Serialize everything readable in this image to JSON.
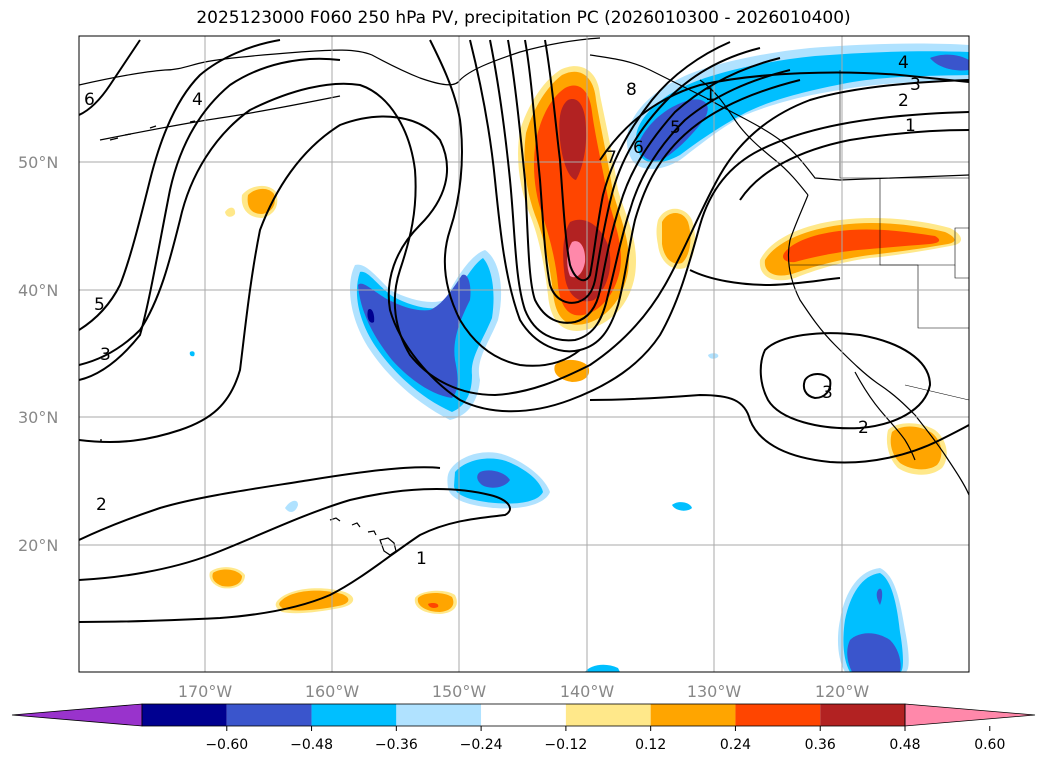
{
  "title": "2025123000 F060 250 hPa PV, precipitation PC (2026010300 - 2026010400)",
  "map": {
    "lat_ticks": [
      "50°N",
      "40°N",
      "30°N",
      "20°N"
    ],
    "lon_ticks": [
      "170°W",
      "160°W",
      "150°W",
      "140°W",
      "130°W",
      "120°W"
    ],
    "grid": true
  },
  "pv_contours": {
    "color": "#000000",
    "labels": [
      "6",
      "4",
      "5",
      "3",
      "2",
      "8",
      "7",
      "6",
      "5",
      "4",
      "3",
      "2",
      "1",
      "1",
      "2",
      "3",
      "1"
    ]
  },
  "colorbar": {
    "ticks": [
      "−0.60",
      "−0.48",
      "−0.36",
      "−0.24",
      "−0.12",
      "0.12",
      "0.24",
      "0.36",
      "0.48",
      "0.60"
    ],
    "colors": [
      "#9933cc",
      "#000090",
      "#3a55cc",
      "#00bfff",
      "#b0e2ff",
      "#ffffff",
      "#ffe88a",
      "#ffa500",
      "#ff4500",
      "#b22222",
      "#ff88aa"
    ],
    "extend": "both"
  }
}
